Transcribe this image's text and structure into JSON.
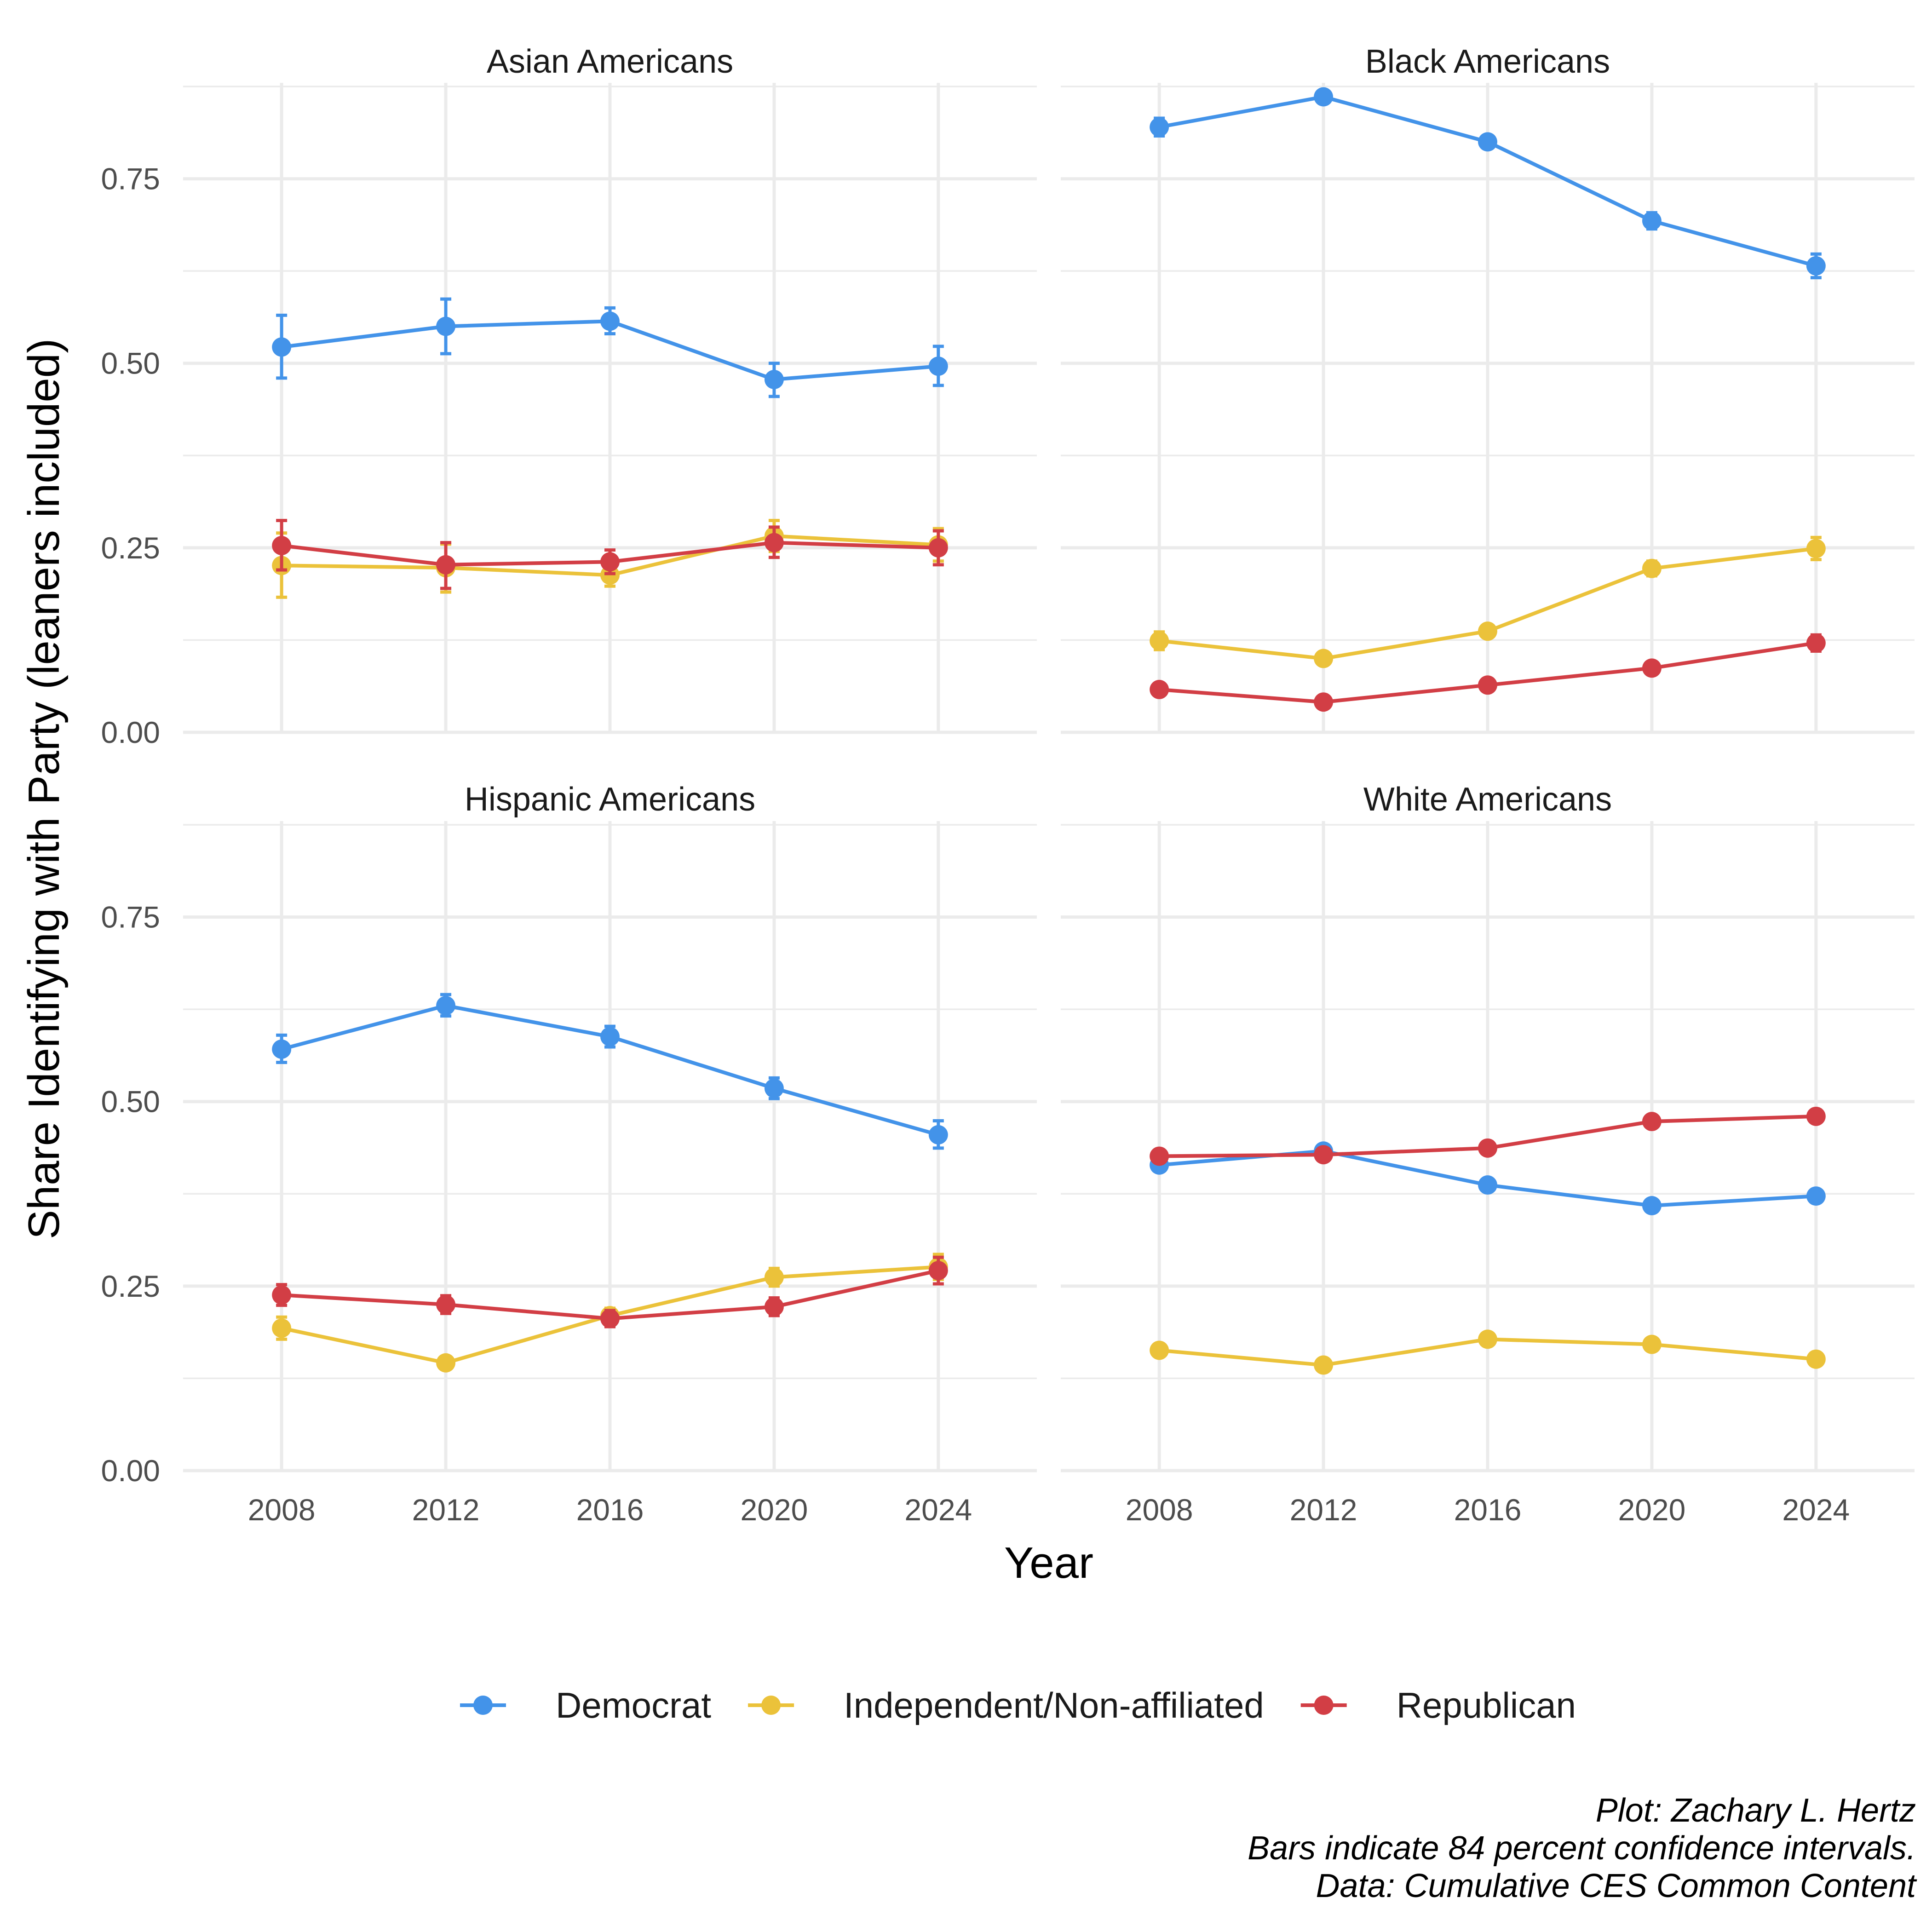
{
  "chart_data": {
    "type": "line",
    "facet_layout": "2x2",
    "x": [
      2008,
      2012,
      2016,
      2020,
      2024
    ],
    "xlabel": "Year",
    "ylabel": "Share Identifying with Party (leaners included)",
    "xlim": [
      2005.6,
      2026.4
    ],
    "ylim": [
      0,
      0.88
    ],
    "y_ticks": [
      0.0,
      0.25,
      0.5,
      0.75
    ],
    "y_tick_labels": [
      "0.00",
      "0.25",
      "0.50",
      "0.75"
    ],
    "x_ticks": [
      2008,
      2012,
      2016,
      2020,
      2024
    ],
    "x_tick_labels": [
      "2008",
      "2012",
      "2016",
      "2020",
      "2024"
    ],
    "grid": true,
    "legend_position": "bottom",
    "legend": [
      {
        "key": "dem",
        "label": "Democrat",
        "color": "#4393E9"
      },
      {
        "key": "ind",
        "label": "Independent/Non-affiliated",
        "color": "#EBC23A"
      },
      {
        "key": "rep",
        "label": "Republican",
        "color": "#D23E45"
      }
    ],
    "caption": [
      "Plot: Zachary L. Hertz",
      "Bars indicate 84 percent confidence intervals.",
      "Data: Cumulative CES Common Content"
    ],
    "panels": [
      {
        "title": "Asian Americans",
        "series": [
          {
            "key": "dem",
            "values": [
              0.522,
              0.55,
              0.557,
              0.478,
              0.496
            ],
            "lower": [
              0.48,
              0.513,
              0.54,
              0.455,
              0.47
            ],
            "upper": [
              0.565,
              0.587,
              0.575,
              0.5,
              0.523
            ]
          },
          {
            "key": "ind",
            "values": [
              0.226,
              0.223,
              0.213,
              0.266,
              0.254
            ],
            "lower": [
              0.183,
              0.19,
              0.198,
              0.245,
              0.232
            ],
            "upper": [
              0.27,
              0.255,
              0.228,
              0.287,
              0.276
            ]
          },
          {
            "key": "rep",
            "values": [
              0.253,
              0.227,
              0.231,
              0.257,
              0.25
            ],
            "lower": [
              0.22,
              0.195,
              0.215,
              0.237,
              0.227
            ],
            "upper": [
              0.287,
              0.257,
              0.247,
              0.278,
              0.273
            ]
          }
        ]
      },
      {
        "title": "Black Americans",
        "series": [
          {
            "key": "dem",
            "values": [
              0.82,
              0.861,
              0.8,
              0.693,
              0.632
            ],
            "lower": [
              0.808,
              0.855,
              0.792,
              0.682,
              0.616
            ],
            "upper": [
              0.832,
              0.867,
              0.808,
              0.704,
              0.648
            ]
          },
          {
            "key": "ind",
            "values": [
              0.124,
              0.1,
              0.137,
              0.222,
              0.249
            ],
            "lower": [
              0.112,
              0.092,
              0.13,
              0.212,
              0.234
            ],
            "upper": [
              0.136,
              0.108,
              0.144,
              0.232,
              0.264
            ]
          },
          {
            "key": "rep",
            "values": [
              0.058,
              0.041,
              0.064,
              0.087,
              0.121
            ],
            "lower": [
              0.051,
              0.036,
              0.059,
              0.081,
              0.11
            ],
            "upper": [
              0.065,
              0.046,
              0.069,
              0.093,
              0.132
            ]
          }
        ]
      },
      {
        "title": "Hispanic Americans",
        "series": [
          {
            "key": "dem",
            "values": [
              0.571,
              0.63,
              0.588,
              0.518,
              0.455
            ],
            "lower": [
              0.553,
              0.616,
              0.574,
              0.504,
              0.437
            ],
            "upper": [
              0.59,
              0.645,
              0.602,
              0.532,
              0.474
            ]
          },
          {
            "key": "ind",
            "values": [
              0.193,
              0.146,
              0.21,
              0.262,
              0.276
            ],
            "lower": [
              0.178,
              0.138,
              0.2,
              0.25,
              0.259
            ],
            "upper": [
              0.208,
              0.154,
              0.22,
              0.274,
              0.293
            ]
          },
          {
            "key": "rep",
            "values": [
              0.238,
              0.225,
              0.206,
              0.222,
              0.271
            ],
            "lower": [
              0.224,
              0.213,
              0.195,
              0.21,
              0.253
            ],
            "upper": [
              0.252,
              0.237,
              0.217,
              0.234,
              0.289
            ]
          }
        ]
      },
      {
        "title": "White Americans",
        "series": [
          {
            "key": "dem",
            "values": [
              0.414,
              0.433,
              0.387,
              0.359,
              0.372
            ],
            "lower": [
              0.41,
              0.43,
              0.384,
              0.356,
              0.368
            ],
            "upper": [
              0.418,
              0.436,
              0.39,
              0.362,
              0.376
            ]
          },
          {
            "key": "ind",
            "values": [
              0.163,
              0.143,
              0.178,
              0.171,
              0.151
            ],
            "lower": [
              0.16,
              0.141,
              0.176,
              0.169,
              0.148
            ],
            "upper": [
              0.166,
              0.145,
              0.18,
              0.173,
              0.154
            ]
          },
          {
            "key": "rep",
            "values": [
              0.426,
              0.428,
              0.437,
              0.473,
              0.48
            ],
            "lower": [
              0.422,
              0.425,
              0.434,
              0.47,
              0.476
            ],
            "upper": [
              0.43,
              0.431,
              0.44,
              0.476,
              0.484
            ]
          }
        ]
      }
    ]
  }
}
